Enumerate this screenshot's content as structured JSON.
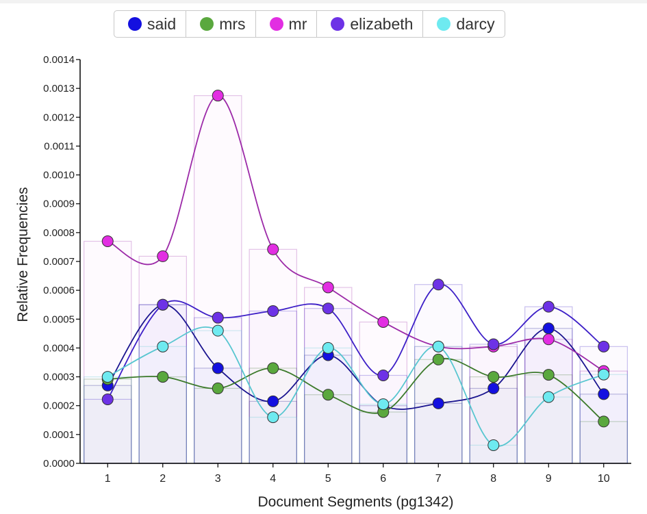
{
  "chart_data": {
    "type": "line",
    "xlabel": "Document Segments (pg1342)",
    "ylabel": "Relative Frequencies",
    "ylim": [
      0,
      0.0014
    ],
    "yticks": [
      "0.0000",
      "0.0001",
      "0.0002",
      "0.0003",
      "0.0004",
      "0.0005",
      "0.0006",
      "0.0007",
      "0.0008",
      "0.0009",
      "0.0010",
      "0.0011",
      "0.0012",
      "0.0013",
      "0.0014"
    ],
    "categories": [
      "1",
      "2",
      "3",
      "4",
      "5",
      "6",
      "7",
      "8",
      "9",
      "10"
    ],
    "legend_position": "top-center",
    "series": [
      {
        "name": "said",
        "color": "#1410e0",
        "line_color": "#1a148f",
        "values": [
          0.00027,
          0.00055,
          0.00033,
          0.000215,
          0.000375,
          0.0002,
          0.000208,
          0.00026,
          0.000468,
          0.00024
        ]
      },
      {
        "name": "mrs",
        "color": "#5aa83e",
        "line_color": "#3c7a2b",
        "values": [
          0.000292,
          0.0003,
          0.00026,
          0.00033,
          0.000238,
          0.000178,
          0.00036,
          0.0003,
          0.000307,
          0.000145
        ]
      },
      {
        "name": "mr",
        "color": "#e22ee2",
        "line_color": "#9c2aa8",
        "values": [
          0.00077,
          0.000718,
          0.001275,
          0.000742,
          0.00061,
          0.00049,
          0.000405,
          0.000405,
          0.00043,
          0.00032
        ]
      },
      {
        "name": "elizabeth",
        "color": "#6d32e6",
        "line_color": "#3d1fc7",
        "values": [
          0.000222,
          0.00055,
          0.000505,
          0.000528,
          0.000537,
          0.000305,
          0.00062,
          0.000413,
          0.000543,
          0.000405
        ]
      },
      {
        "name": "darcy",
        "color": "#6eeaf0",
        "line_color": "#57c6d0",
        "values": [
          0.0003,
          0.000405,
          0.00046,
          0.00016,
          0.0004,
          0.000205,
          0.000405,
          6.3e-05,
          0.00023,
          0.000308
        ]
      }
    ]
  }
}
